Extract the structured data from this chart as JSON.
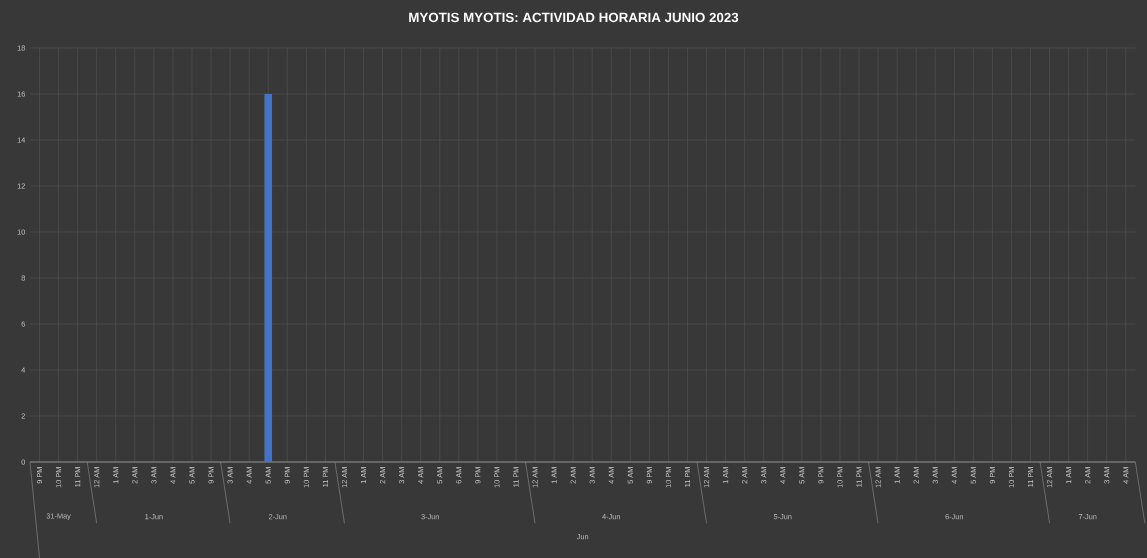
{
  "chart_data": {
    "type": "bar",
    "title": "MYOTIS MYOTIS: ACTIVIDAD HORARIA JUNIO 2023",
    "categories": [
      "9 PM",
      "10 PM",
      "11 PM",
      "12 AM",
      "1 AM",
      "2 AM",
      "3 AM",
      "4 AM",
      "5 AM",
      "9 PM",
      "3 AM",
      "4 AM",
      "5 AM",
      "9 PM",
      "10 PM",
      "11 PM",
      "12 AM",
      "1 AM",
      "2 AM",
      "3 AM",
      "4 AM",
      "5 AM",
      "6 AM",
      "9 PM",
      "10 PM",
      "11 PM",
      "12 AM",
      "1 AM",
      "2 AM",
      "3 AM",
      "4 AM",
      "5 AM",
      "9 PM",
      "10 PM",
      "11 PM",
      "12 AM",
      "1 AM",
      "2 AM",
      "3 AM",
      "4 AM",
      "5 AM",
      "9 PM",
      "10 PM",
      "11 PM",
      "12 AM",
      "1 AM",
      "2 AM",
      "3 AM",
      "4 AM",
      "5 AM",
      "9 PM",
      "10 PM",
      "11 PM",
      "12 AM",
      "1 AM",
      "2 AM",
      "3 AM",
      "4 AM"
    ],
    "values": [
      0,
      0,
      0,
      0,
      0,
      0,
      0,
      0,
      0,
      0,
      0,
      0,
      16,
      0,
      0,
      0,
      0,
      0,
      0,
      0,
      0,
      0,
      0,
      0,
      0,
      0,
      0,
      0,
      0,
      0,
      0,
      0,
      0,
      0,
      0,
      0,
      0,
      0,
      0,
      0,
      0,
      0,
      0,
      0,
      0,
      0,
      0,
      0,
      0,
      0,
      0,
      0,
      0,
      0,
      0,
      0,
      0,
      0
    ],
    "color": "#4472c4",
    "ylim": [
      0,
      18
    ],
    "yticks": [
      0,
      2,
      4,
      6,
      8,
      10,
      12,
      14,
      16,
      18
    ],
    "grid": true,
    "annotations": [
      "31-May",
      "1-Jun",
      "2-Jun",
      "3-Jun",
      "4-Jun",
      "5-Jun",
      "6-Jun",
      "7-Jun",
      "Jun"
    ]
  }
}
